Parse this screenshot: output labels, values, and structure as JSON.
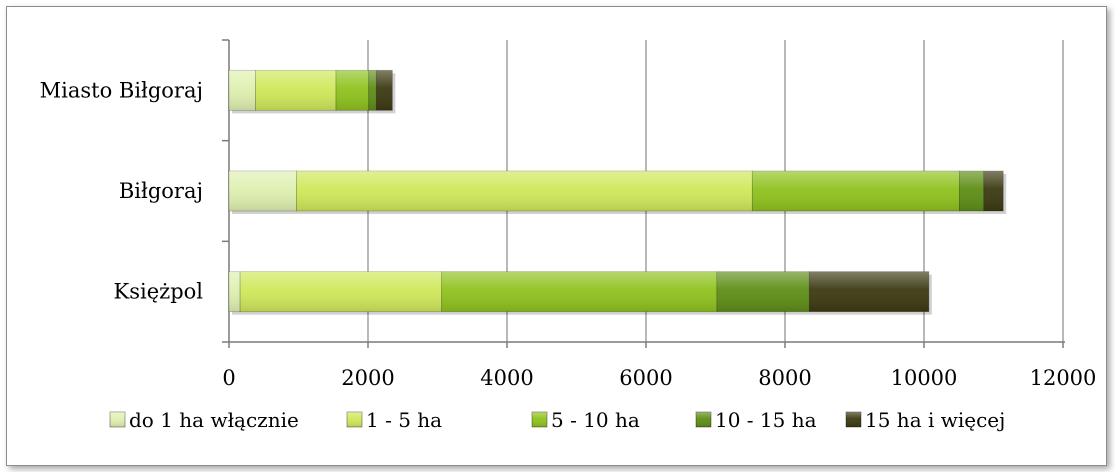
{
  "chart_data": {
    "type": "bar",
    "orientation": "horizontal",
    "stacked": true,
    "categories": [
      "Miasto Biłgoraj",
      "Biłgoraj",
      "Księżpol"
    ],
    "series": [
      {
        "name": "do 1 ha włącznie",
        "color": "#dff0b0",
        "values": [
          380,
          970,
          160
        ]
      },
      {
        "name": "1 - 5 ha",
        "color": "#cfe85a",
        "values": [
          1160,
          6560,
          2900
        ]
      },
      {
        "name": "5 - 10 ha",
        "color": "#8fc21e",
        "values": [
          470,
          2980,
          3960
        ]
      },
      {
        "name": "10 - 15 ha",
        "color": "#5e8e16",
        "values": [
          110,
          350,
          1330
        ]
      },
      {
        "name": "15 ha i więcej",
        "color": "#3c3a12",
        "values": [
          230,
          280,
          1720
        ]
      }
    ],
    "xlim": [
      0,
      12000
    ],
    "xticks": [
      0,
      2000,
      4000,
      6000,
      8000,
      10000,
      12000
    ],
    "grid": true,
    "legend_position": "bottom"
  }
}
